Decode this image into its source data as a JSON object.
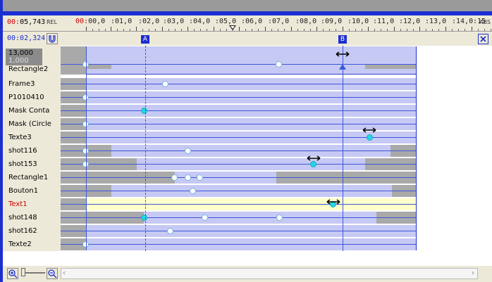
{
  "header": {
    "current_time": "00:05,743",
    "current_time_prefix": "00:",
    "current_time_rest": "05,743",
    "rel_label": "REL",
    "abs_label": "ABS",
    "duration": "00:02,324",
    "ruler_labels": [
      "00:00,0",
      ":01,0",
      ":02,0",
      ":03,0",
      ":04,0",
      ":05,0",
      ":06,0",
      ":07,0",
      ":08,0",
      ":09,0",
      ":10,0",
      ":11,0",
      ":12,0",
      ":13,0",
      ":14,0",
      ":15"
    ]
  },
  "markers": {
    "a_label": "A",
    "b_label": "B"
  },
  "rect_values": {
    "top": "13,000",
    "bottom": "1,000"
  },
  "tracks": [
    {
      "name": "Rectangle2",
      "color": "#000000"
    },
    {
      "name": "Frame3",
      "color": "#000000"
    },
    {
      "name": "P1010410",
      "color": "#000000"
    },
    {
      "name": "Mask Conta",
      "color": "#000000"
    },
    {
      "name": "Mask (Circle",
      "color": "#000000"
    },
    {
      "name": "Texte3",
      "color": "#000000"
    },
    {
      "name": "shot116",
      "color": "#000000"
    },
    {
      "name": "shot153",
      "color": "#000000"
    },
    {
      "name": "Rectangle1",
      "color": "#000000"
    },
    {
      "name": "Bouton1",
      "color": "#000000"
    },
    {
      "name": "Text1",
      "color": "#cc0000"
    },
    {
      "name": "shot148",
      "color": "#000000"
    },
    {
      "name": "shot162",
      "color": "#000000"
    },
    {
      "name": "Texte2",
      "color": "#000000"
    }
  ],
  "colors": {
    "accent": "#1c2fd0",
    "track_fill": "#c6c9f4",
    "selected_fill": "#ffffcc",
    "keyframe_selected": "#22d6e8"
  }
}
